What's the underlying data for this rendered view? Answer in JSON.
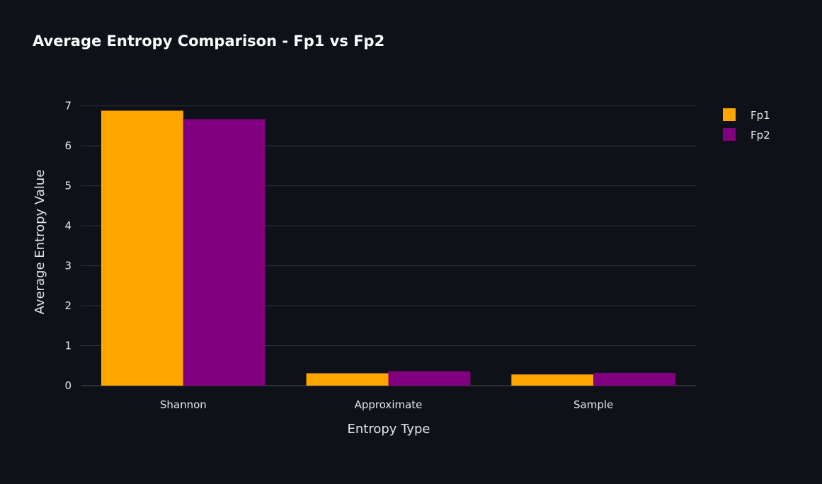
{
  "chart_data": {
    "type": "bar",
    "title": "Average Entropy Comparison - Fp1 vs Fp2",
    "xlabel": "Entropy Type",
    "ylabel": "Average Entropy Value",
    "categories": [
      "Shannon",
      "Approximate",
      "Sample"
    ],
    "series": [
      {
        "name": "Fp1",
        "color": "#FFA500",
        "values": [
          6.88,
          0.31,
          0.28
        ]
      },
      {
        "name": "Fp2",
        "color": "#800080",
        "values": [
          6.67,
          0.36,
          0.32
        ]
      }
    ],
    "ylim": [
      0,
      7.1
    ],
    "yticks": [
      0,
      1,
      2,
      3,
      4,
      5,
      6,
      7
    ],
    "grid": true,
    "legend_position": "top-right",
    "background": "#0e1117"
  }
}
